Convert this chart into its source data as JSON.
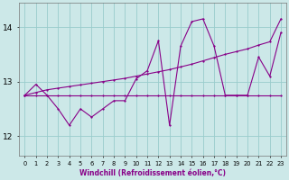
{
  "bg_color": "#cce8e8",
  "grid_color": "#99cccc",
  "line_color": "#880088",
  "xlabel": "Windchill (Refroidissement éolien,°C)",
  "xlim": [
    -0.5,
    23.5
  ],
  "ylim": [
    11.65,
    14.45
  ],
  "yticks": [
    12,
    13,
    14
  ],
  "x": [
    0,
    1,
    2,
    3,
    4,
    5,
    6,
    7,
    8,
    9,
    10,
    11,
    12,
    13,
    14,
    15,
    16,
    17,
    18,
    19,
    20,
    21,
    22,
    23
  ],
  "y_flat": [
    12.75,
    12.75,
    12.75,
    12.75,
    12.75,
    12.75,
    12.75,
    12.75,
    12.75,
    12.75,
    12.75,
    12.75,
    12.75,
    12.75,
    12.75,
    12.75,
    12.75,
    12.75,
    12.75,
    12.75,
    12.75,
    12.75,
    12.75,
    12.75
  ],
  "y_trend": [
    12.75,
    12.8,
    12.85,
    12.88,
    12.91,
    12.94,
    12.97,
    13.0,
    13.03,
    13.06,
    13.1,
    13.14,
    13.18,
    13.22,
    13.27,
    13.32,
    13.38,
    13.44,
    13.5,
    13.55,
    13.6,
    13.67,
    13.73,
    14.15
  ],
  "y_zigzag": [
    12.75,
    12.95,
    12.75,
    12.5,
    12.2,
    12.5,
    12.35,
    12.5,
    12.65,
    12.65,
    13.05,
    13.2,
    13.75,
    12.2,
    13.65,
    14.1,
    14.15,
    13.65,
    12.75,
    12.75,
    12.75,
    13.45,
    13.1,
    13.9
  ]
}
